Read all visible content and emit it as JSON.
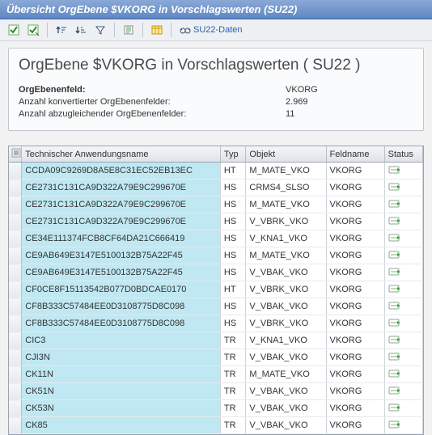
{
  "window": {
    "title": "Übersicht OrgEbene $VKORG in Vorschlagswerten (SU22)"
  },
  "toolbar": {
    "su22_link_label": "SU22-Daten",
    "icons": {
      "exec_green": "exec-icon",
      "exec_out": "exec-variant-icon",
      "sort_asc": "sort-asc-icon",
      "sort_desc": "sort-desc-icon",
      "filter": "filter-icon",
      "export": "export-icon",
      "layout": "layout-icon",
      "info": "info-icon"
    }
  },
  "panel": {
    "heading": "OrgEbene $VKORG in Vorschlagswerten ( SU22 )",
    "rows": [
      {
        "label": "OrgEbenenfeld:",
        "value": "VKORG",
        "bold": true
      },
      {
        "label": "Anzahl konvertierter OrgEbenenfelder:",
        "value": "2.969",
        "bold": false
      },
      {
        "label": "Anzahl abzugleichender OrgEbenenfelder:",
        "value": "11",
        "bold": false
      }
    ]
  },
  "grid": {
    "columns": [
      "Technischer Anwendungsname",
      "Typ",
      "Objekt",
      "Feldname",
      "Status"
    ],
    "rows": [
      {
        "tech": "CCDA09C9269D8A5E8C31EC52EB13EC",
        "typ": "HT",
        "obj": "M_MATE_VKO",
        "fld": "VKORG"
      },
      {
        "tech": "CE2731C131CA9D322A79E9C299670E",
        "typ": "HS",
        "obj": "CRMS4_SLSO",
        "fld": "VKORG"
      },
      {
        "tech": "CE2731C131CA9D322A79E9C299670E",
        "typ": "HS",
        "obj": "M_MATE_VKO",
        "fld": "VKORG"
      },
      {
        "tech": "CE2731C131CA9D322A79E9C299670E",
        "typ": "HS",
        "obj": "V_VBRK_VKO",
        "fld": "VKORG"
      },
      {
        "tech": "CE34E111374FCB8CF64DA21C666419",
        "typ": "HS",
        "obj": "V_KNA1_VKO",
        "fld": "VKORG"
      },
      {
        "tech": "CE9AB649E3147E5100132B75A22F45",
        "typ": "HS",
        "obj": "M_MATE_VKO",
        "fld": "VKORG"
      },
      {
        "tech": "CE9AB649E3147E5100132B75A22F45",
        "typ": "HS",
        "obj": "V_VBAK_VKO",
        "fld": "VKORG"
      },
      {
        "tech": "CF0CE8F15113542B077D0BDCAE0170",
        "typ": "HT",
        "obj": "V_VBRK_VKO",
        "fld": "VKORG"
      },
      {
        "tech": "CF8B333C57484EE0D3108775D8C098",
        "typ": "HS",
        "obj": "V_VBAK_VKO",
        "fld": "VKORG"
      },
      {
        "tech": "CF8B333C57484EE0D3108775D8C098",
        "typ": "HS",
        "obj": "V_VBRK_VKO",
        "fld": "VKORG"
      },
      {
        "tech": "CIC3",
        "typ": "TR",
        "obj": "V_KNA1_VKO",
        "fld": "VKORG"
      },
      {
        "tech": "CJI3N",
        "typ": "TR",
        "obj": "V_VBAK_VKO",
        "fld": "VKORG"
      },
      {
        "tech": "CK11N",
        "typ": "TR",
        "obj": "M_MATE_VKO",
        "fld": "VKORG"
      },
      {
        "tech": "CK51N",
        "typ": "TR",
        "obj": "V_VBAK_VKO",
        "fld": "VKORG"
      },
      {
        "tech": "CK53N",
        "typ": "TR",
        "obj": "V_VBAK_VKO",
        "fld": "VKORG"
      },
      {
        "tech": "CK85",
        "typ": "TR",
        "obj": "V_VBAK_VKO",
        "fld": "VKORG"
      }
    ]
  },
  "colors": {
    "titlebar_top": "#8aa9d6",
    "titlebar_bot": "#5f87c4",
    "tech_cell_bg": "#bfe8f2",
    "header_bg_top": "#f5f6f8",
    "header_bg_bot": "#dfe3e9"
  }
}
